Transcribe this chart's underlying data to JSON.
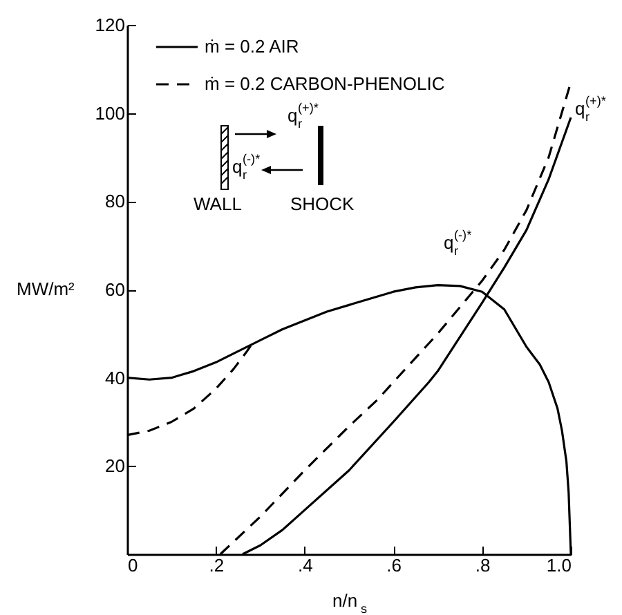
{
  "chart_data": {
    "type": "line",
    "xlabel": "n/n$_{s}$",
    "ylabel": "MW/m²",
    "xlim": [
      0,
      1
    ],
    "ylim": [
      0,
      120
    ],
    "xticks": [
      0,
      {
        "value": 0.2,
        "label": ".2"
      },
      {
        "value": 0.4,
        "label": ".4"
      },
      {
        "value": 0.6,
        "label": ".6"
      },
      {
        "value": 0.8,
        "label": ".8"
      },
      {
        "value": 1,
        "label": "1.0"
      }
    ],
    "yticks": [
      20,
      40,
      60,
      80,
      100,
      120
    ],
    "grid": false,
    "legend": "top",
    "marker": "none",
    "series": [
      {
        "name": "ṁ = 0.2 AIR",
        "color": "#000000",
        "line_style": "solid",
        "x": [
          0,
          0.05,
          0.1,
          0.15,
          0.2,
          0.25,
          0.3,
          0.35,
          0.4,
          0.45,
          0.5,
          0.55,
          0.6,
          0.65,
          0.7,
          0.75,
          0.8,
          0.85,
          0.9,
          0.93,
          0.95,
          0.97,
          0.98,
          0.99,
          0.995,
          1.0
        ],
        "values": [
          40,
          39.6,
          40,
          41.5,
          43.5,
          46,
          48.5,
          51,
          53,
          55,
          56.5,
          58,
          59.5,
          60.5,
          61,
          60.8,
          59.5,
          55.5,
          47,
          43,
          39,
          33,
          28,
          21,
          14,
          0
        ]
      },
      {
        "name": "ṁ = 0.2 CARBON-PHENOLIC",
        "color": "#000000",
        "line_style": "dashed",
        "x": [
          0,
          0.05,
          0.1,
          0.15,
          0.2,
          0.24,
          0.27,
          0.28
        ],
        "values": [
          27,
          28,
          30,
          33,
          37.5,
          42,
          46,
          47.5
        ]
      },
      {
        "color": "#000000",
        "line_style": "solid",
        "x": [
          0.26,
          0.3,
          0.35,
          0.4,
          0.5,
          0.6,
          0.68,
          0.7,
          0.8,
          0.85,
          0.9,
          0.95,
          1.0
        ],
        "values": [
          0,
          2,
          5.5,
          10,
          19,
          30,
          39,
          41.5,
          57,
          65,
          73.5,
          85,
          99
        ]
      },
      {
        "color": "#000000",
        "line_style": "dashed",
        "x": [
          0.21,
          0.3,
          0.4,
          0.5,
          0.564,
          0.6,
          0.7,
          0.8,
          0.85,
          0.9,
          0.95,
          1.0
        ],
        "values": [
          0,
          8.5,
          19,
          29,
          35,
          39,
          50,
          62,
          69,
          78,
          90,
          107
        ]
      }
    ],
    "annotations": [
      "q$_{r}$$^{(+)*}$",
      "q$_{r}$$^{(-)*}$",
      "WALL",
      "SHOCK",
      {
        "text": "q$_{r}$$^{(+)*}$",
        "x": 1.0,
        "y": 99
      },
      "q$_{r}$$^{(-)*}$"
    ]
  }
}
